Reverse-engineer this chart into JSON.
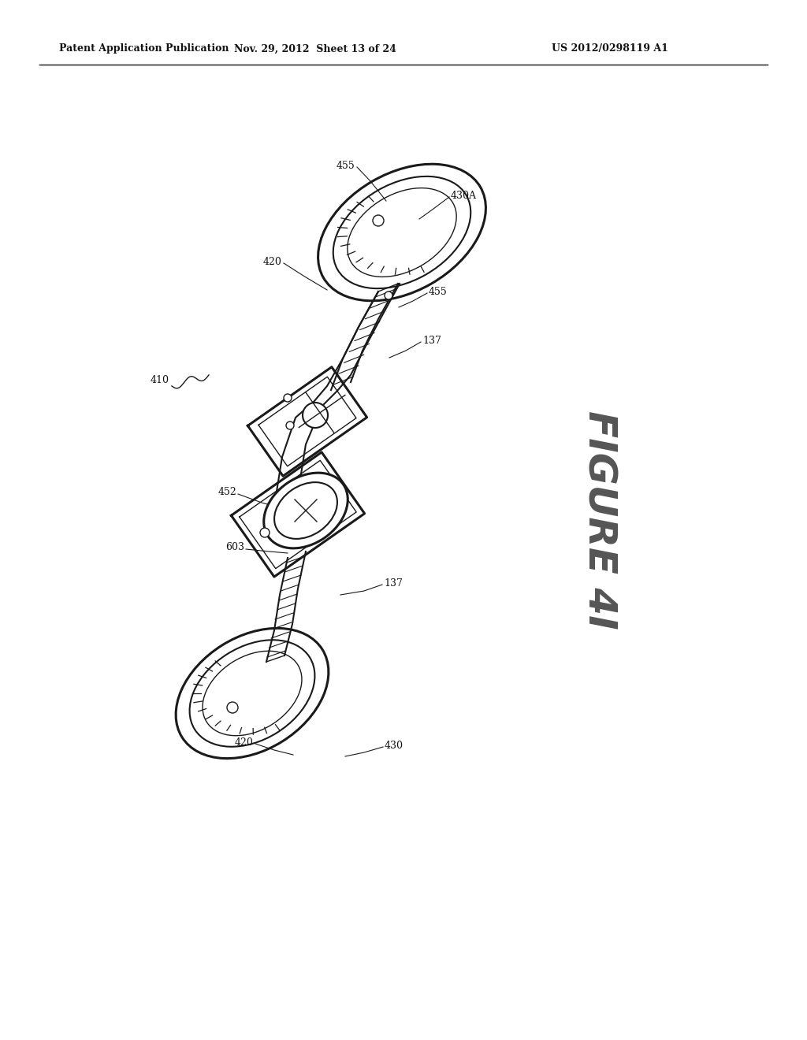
{
  "background_color": "#ffffff",
  "header_left": "Patent Application Publication",
  "header_center": "Nov. 29, 2012  Sheet 13 of 24",
  "header_right": "US 2012/0298119 A1",
  "figure_label": "FIGURE 4I",
  "ref_410": "410",
  "ref_420_top": "420",
  "ref_430A": "430A",
  "ref_455_top": "455",
  "ref_455_mid": "455",
  "ref_137_top": "137",
  "ref_452": "452",
  "ref_603": "603",
  "ref_137_bot": "137",
  "ref_420_bot": "420",
  "ref_430": "430"
}
